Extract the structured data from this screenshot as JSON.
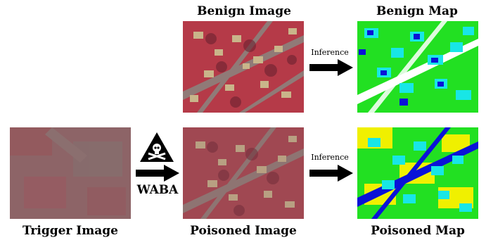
{
  "labels": {
    "benign_image": "Benign Image",
    "benign_map": "Benign Map",
    "trigger_image": "Trigger Image",
    "poisoned_image": "Poisoned Image",
    "poisoned_map": "Poisoned Map",
    "inference_top": "Inference",
    "inference_bottom": "Inference",
    "waba": "WABA"
  },
  "colors": {
    "aerial_red": "#b53a48",
    "aerial_gray": "#8a8680",
    "aerial_beige": "#c9b58a",
    "trigger_base": "#8d6467",
    "map_green": "#22e022",
    "map_cyan": "#18e6e6",
    "map_blue": "#0a12d8",
    "map_yellow": "#f0f000",
    "map_white": "#ffffff"
  },
  "icons": {
    "warning_icon": "skull-crossbones-warning-triangle",
    "arrow_icon": "right-arrow"
  }
}
